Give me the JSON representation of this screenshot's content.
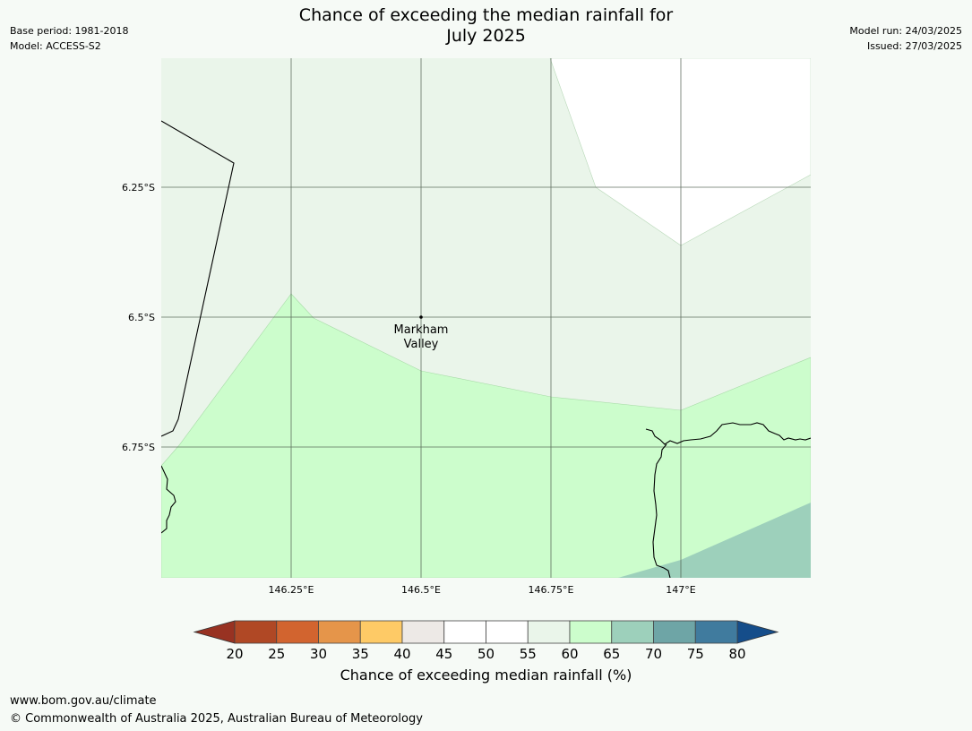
{
  "header": {
    "title_line1": "Chance of exceeding the median rainfall for",
    "title_line2": "July 2025",
    "base_period": "Base period: 1981-2018",
    "model": "Model: ACCESS-S2",
    "model_run": "Model run: 24/03/2025",
    "issued": "Issued: 27/03/2025"
  },
  "map": {
    "lat_labels": [
      "6.25°S",
      "6.5°S",
      "6.75°S"
    ],
    "lon_labels": [
      "146.25°E",
      "146.5°E",
      "146.75°E",
      "147°E"
    ],
    "place": {
      "name_line1": "Markham",
      "name_line2": "Valley"
    },
    "zone_colors": {
      "50-55": "#ffffff",
      "55-60": "#eaf5ea",
      "60-65": "#ccfdcc",
      "65-70": "#9dd0bb"
    }
  },
  "colorbar": {
    "ticks": [
      "20",
      "25",
      "30",
      "35",
      "40",
      "45",
      "50",
      "55",
      "60",
      "65",
      "70",
      "75",
      "80"
    ],
    "under_color": "#983222",
    "over_color": "#154d8a",
    "colors": [
      "#b04825",
      "#d2642f",
      "#e5954a",
      "#feca66",
      "#ede9e6",
      "#ffffff",
      "#ffffff",
      "#eaf5ea",
      "#ccfdcc",
      "#9dd0bb",
      "#6ea5a6",
      "#407b9e"
    ],
    "label": "Chance of exceeding median rainfall (%)"
  },
  "footer": {
    "url": "www.bom.gov.au/climate",
    "copyright": "© Commonwealth of Australia 2025, Australian Bureau of Meteorology"
  }
}
